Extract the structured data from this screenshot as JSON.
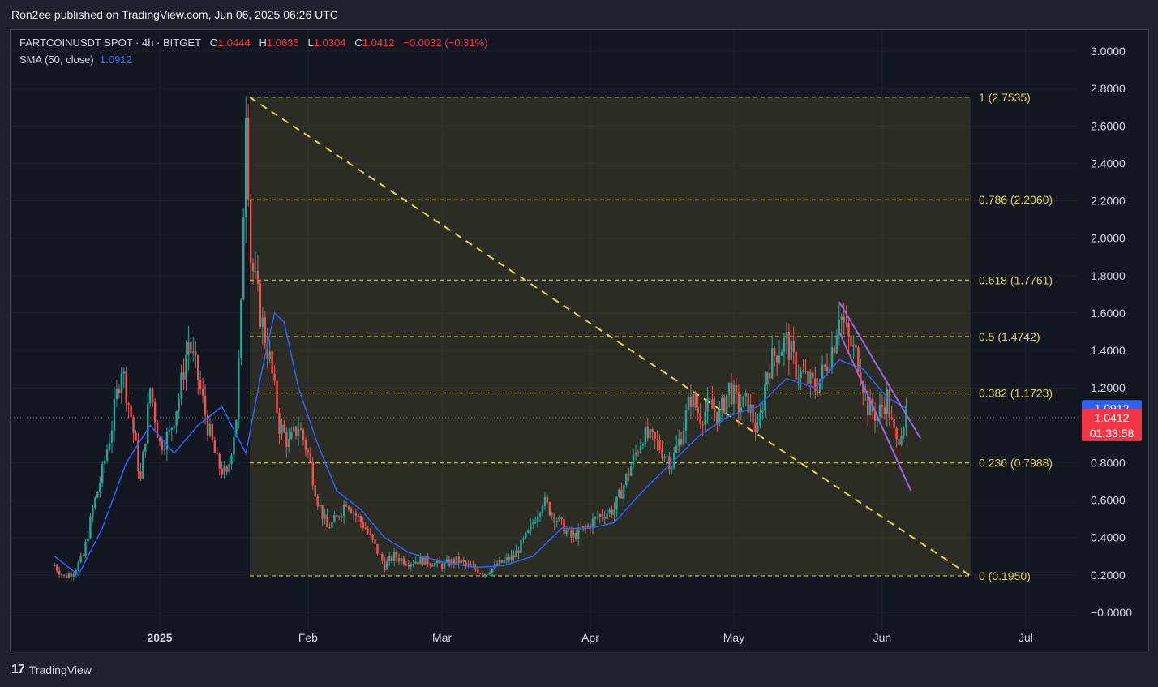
{
  "header": {
    "published": "Ron2ee published on TradingView.com, Jun 06, 2025 06:26 UTC"
  },
  "legend": {
    "symbol": "FARTCOINUSDT SPOT · 4h · BITGET",
    "o_label": "O",
    "o_value": "1.0444",
    "h_label": "H",
    "h_value": "1.0635",
    "l_label": "L",
    "l_value": "1.0304",
    "c_label": "C",
    "c_value": "1.0412",
    "change": "−0.0032 (−0.31%)",
    "sma_label": "SMA (50, close)",
    "sma_value": "1.0912"
  },
  "footer": {
    "brand": "TradingView"
  },
  "colors": {
    "up": "#26a69a",
    "down": "#ef5350",
    "sma": "#2962ff",
    "fib": "#e0d24a",
    "channel": "#9c64d8",
    "price_badge": "#f23645",
    "sma_badge": "#2962ff"
  },
  "chart_data": {
    "type": "candlestick",
    "timeframe": "4h",
    "ylim": [
      0.0,
      3.0
    ],
    "y_ticks": [
      "3.0000",
      "2.8000",
      "2.6000",
      "2.4000",
      "2.2000",
      "2.0000",
      "1.8000",
      "1.6000",
      "1.4000",
      "1.2000",
      "0.8000",
      "0.6000",
      "0.4000",
      "0.2000",
      "−0.0000"
    ],
    "x_ticks": [
      "2025",
      "Feb",
      "Mar",
      "Apr",
      "May",
      "Jun",
      "Jul"
    ],
    "fib_levels": [
      {
        "label": "1 (2.7535)",
        "value": 2.7535
      },
      {
        "label": "0.786 (2.2060)",
        "value": 2.206
      },
      {
        "label": "0.618 (1.7761)",
        "value": 1.7761
      },
      {
        "label": "0.5 (1.4742)",
        "value": 1.4742
      },
      {
        "label": "0.382 (1.1723)",
        "value": 1.1723
      },
      {
        "label": "0.236 (0.7988)",
        "value": 0.7988
      },
      {
        "label": "0 (0.1950)",
        "value": 0.195
      }
    ],
    "last_price": {
      "value": 1.0412,
      "label": "1.0412",
      "countdown": "01:33:58"
    },
    "sma_last": {
      "value": 1.0912,
      "label": "1.0912"
    },
    "price_path": [
      [
        "Dec 10",
        0.25
      ],
      [
        "Dec 12",
        0.19
      ],
      [
        "Dec 14",
        0.22
      ],
      [
        "Dec 16",
        0.3
      ],
      [
        "Dec 18",
        0.55
      ],
      [
        "Dec 20",
        0.75
      ],
      [
        "Dec 22",
        1.0
      ],
      [
        "Dec 24",
        1.32
      ],
      [
        "Dec 26",
        1.05
      ],
      [
        "Dec 28",
        0.7
      ],
      [
        "Dec 30",
        1.2
      ],
      [
        "Jan 1",
        0.9
      ],
      [
        "Jan 3",
        0.95
      ],
      [
        "Jan 5",
        1.15
      ],
      [
        "Jan 7",
        1.45
      ],
      [
        "Jan 9",
        1.25
      ],
      [
        "Jan 11",
        1.0
      ],
      [
        "Jan 13",
        0.8
      ],
      [
        "Jan 15",
        0.72
      ],
      [
        "Jan 17",
        1.05
      ],
      [
        "Jan 18",
        1.6
      ],
      [
        "Jan 19",
        2.75
      ],
      [
        "Jan 20",
        1.9
      ],
      [
        "Jan 22",
        1.6
      ],
      [
        "Jan 24",
        1.35
      ],
      [
        "Jan 26",
        1.0
      ],
      [
        "Jan 28",
        0.9
      ],
      [
        "Jan 30",
        1.0
      ],
      [
        "Feb 1",
        0.85
      ],
      [
        "Feb 3",
        0.6
      ],
      [
        "Feb 5",
        0.45
      ],
      [
        "Feb 7",
        0.5
      ],
      [
        "Feb 9",
        0.6
      ],
      [
        "Feb 11",
        0.52
      ],
      [
        "Feb 13",
        0.45
      ],
      [
        "Feb 15",
        0.35
      ],
      [
        "Feb 17",
        0.25
      ],
      [
        "Feb 19",
        0.3
      ],
      [
        "Feb 22",
        0.27
      ],
      [
        "Feb 25",
        0.28
      ],
      [
        "Mar 1",
        0.25
      ],
      [
        "Mar 4",
        0.28
      ],
      [
        "Mar 7",
        0.24
      ],
      [
        "Mar 10",
        0.21
      ],
      [
        "Mar 13",
        0.26
      ],
      [
        "Mar 16",
        0.3
      ],
      [
        "Mar 19",
        0.42
      ],
      [
        "Mar 22",
        0.6
      ],
      [
        "Mar 25",
        0.5
      ],
      [
        "Mar 28",
        0.4
      ],
      [
        "Mar 31",
        0.45
      ],
      [
        "Apr 3",
        0.52
      ],
      [
        "Apr 6",
        0.55
      ],
      [
        "Apr 9",
        0.75
      ],
      [
        "Apr 12",
        0.95
      ],
      [
        "Apr 15",
        0.9
      ],
      [
        "Apr 18",
        0.8
      ],
      [
        "Apr 20",
        0.95
      ],
      [
        "Apr 22",
        1.15
      ],
      [
        "Apr 24",
        1.05
      ],
      [
        "Apr 26",
        1.1
      ],
      [
        "Apr 28",
        1.05
      ],
      [
        "Apr 30",
        1.2
      ],
      [
        "May 2",
        1.1
      ],
      [
        "May 4",
        1.12
      ],
      [
        "May 6",
        0.95
      ],
      [
        "May 8",
        1.3
      ],
      [
        "May 10",
        1.4
      ],
      [
        "May 12",
        1.45
      ],
      [
        "May 14",
        1.3
      ],
      [
        "May 16",
        1.25
      ],
      [
        "May 18",
        1.2
      ],
      [
        "May 20",
        1.3
      ],
      [
        "May 22",
        1.45
      ],
      [
        "May 23",
        1.62
      ],
      [
        "May 25",
        1.45
      ],
      [
        "May 27",
        1.35
      ],
      [
        "May 29",
        1.1
      ],
      [
        "May 31",
        1.05
      ],
      [
        "Jun 2",
        1.15
      ],
      [
        "Jun 3",
        1.0
      ],
      [
        "Jun 4",
        0.9
      ],
      [
        "Jun 5",
        1.0
      ],
      [
        "Jun 6",
        1.0412
      ]
    ],
    "sma_path": [
      [
        "Dec 10",
        0.3
      ],
      [
        "Dec 15",
        0.2
      ],
      [
        "Dec 20",
        0.45
      ],
      [
        "Dec 25",
        0.8
      ],
      [
        "Dec 30",
        1.0
      ],
      [
        "Jan 4",
        0.85
      ],
      [
        "Jan 9",
        1.0
      ],
      [
        "Jan 14",
        1.1
      ],
      [
        "Jan 19",
        0.85
      ],
      [
        "Jan 22",
        1.25
      ],
      [
        "Jan 25",
        1.6
      ],
      [
        "Jan 27",
        1.55
      ],
      [
        "Jan 30",
        1.2
      ],
      [
        "Feb 3",
        0.9
      ],
      [
        "Feb 7",
        0.65
      ],
      [
        "Feb 12",
        0.55
      ],
      [
        "Feb 17",
        0.4
      ],
      [
        "Feb 22",
        0.32
      ],
      [
        "Mar 1",
        0.27
      ],
      [
        "Mar 8",
        0.24
      ],
      [
        "Mar 14",
        0.25
      ],
      [
        "Mar 20",
        0.3
      ],
      [
        "Mar 26",
        0.45
      ],
      [
        "Apr 1",
        0.45
      ],
      [
        "Apr 6",
        0.48
      ],
      [
        "Apr 12",
        0.65
      ],
      [
        "Apr 18",
        0.8
      ],
      [
        "Apr 24",
        0.95
      ],
      [
        "Apr 30",
        1.05
      ],
      [
        "May 6",
        1.1
      ],
      [
        "May 12",
        1.25
      ],
      [
        "May 18",
        1.2
      ],
      [
        "May 23",
        1.35
      ],
      [
        "May 28",
        1.3
      ],
      [
        "Jun 2",
        1.15
      ],
      [
        "Jun 6",
        1.0912
      ]
    ]
  }
}
